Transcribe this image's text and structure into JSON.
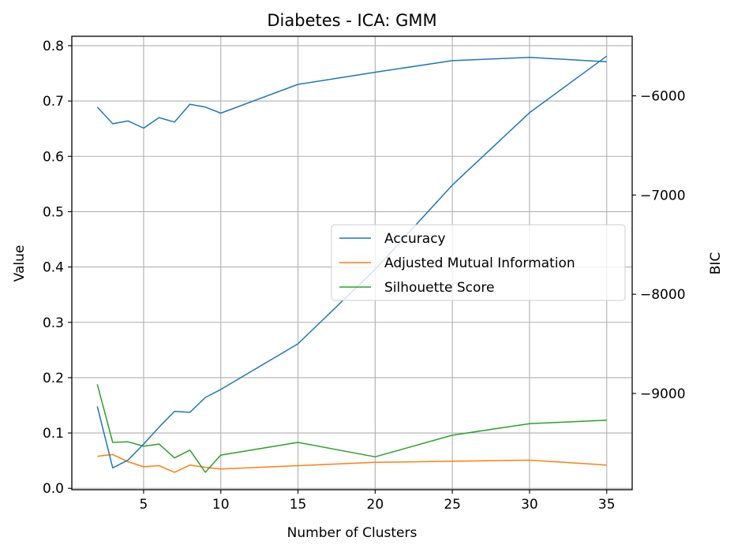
{
  "chart_data": {
    "type": "line",
    "title": "Diabetes - ICA: GMM",
    "xlabel": "Number of Clusters",
    "ylabel": "Value",
    "y2label": "BIC",
    "x": [
      2,
      3,
      4,
      5,
      6,
      7,
      8,
      9,
      10,
      15,
      20,
      25,
      30,
      35
    ],
    "xticks": [
      5,
      10,
      15,
      20,
      25,
      30,
      35
    ],
    "xlim": [
      0.35,
      36.65
    ],
    "ylim": [
      -0.0025,
      0.817
    ],
    "yticks": [
      0.0,
      0.1,
      0.2,
      0.3,
      0.4,
      0.5,
      0.6,
      0.7,
      0.8
    ],
    "ytick_labels": [
      "0.0",
      "0.1",
      "0.2",
      "0.3",
      "0.4",
      "0.5",
      "0.6",
      "0.7",
      "0.8"
    ],
    "y2lim": [
      -9970,
      -5400
    ],
    "y2ticks": [
      -6000,
      -7000,
      -8000,
      -9000
    ],
    "y2tick_labels": [
      "−6000",
      "−7000",
      "−8000",
      "−9000"
    ],
    "grid": true,
    "legend_position": "center-right",
    "series": [
      {
        "name": "Accuracy",
        "color": "#1f77b4",
        "axis": "left",
        "values": [
          0.689,
          0.659,
          0.664,
          0.651,
          0.67,
          0.662,
          0.694,
          0.689,
          0.678,
          0.73,
          0.752,
          0.773,
          0.779,
          0.771
        ]
      },
      {
        "name": "Adjusted Mutual Information",
        "color": "#ff7f0e",
        "axis": "left",
        "values": [
          0.058,
          0.061,
          0.048,
          0.039,
          0.041,
          0.029,
          0.042,
          0.038,
          0.035,
          0.041,
          0.047,
          0.049,
          0.051,
          0.042
        ]
      },
      {
        "name": "Silhouette Score",
        "color": "#2ca02c",
        "axis": "left",
        "values": [
          0.188,
          0.083,
          0.084,
          0.076,
          0.08,
          0.055,
          0.069,
          0.029,
          0.06,
          0.083,
          0.057,
          0.096,
          0.117,
          0.123
        ]
      },
      {
        "axis": "right",
        "color": "#1f77b4",
        "values": [
          -9130,
          -9750,
          -9670,
          -9510,
          -9340,
          -9180,
          -9190,
          -9040,
          -8960,
          -8500,
          -7750,
          -6900,
          -6170,
          -5600
        ]
      }
    ]
  }
}
